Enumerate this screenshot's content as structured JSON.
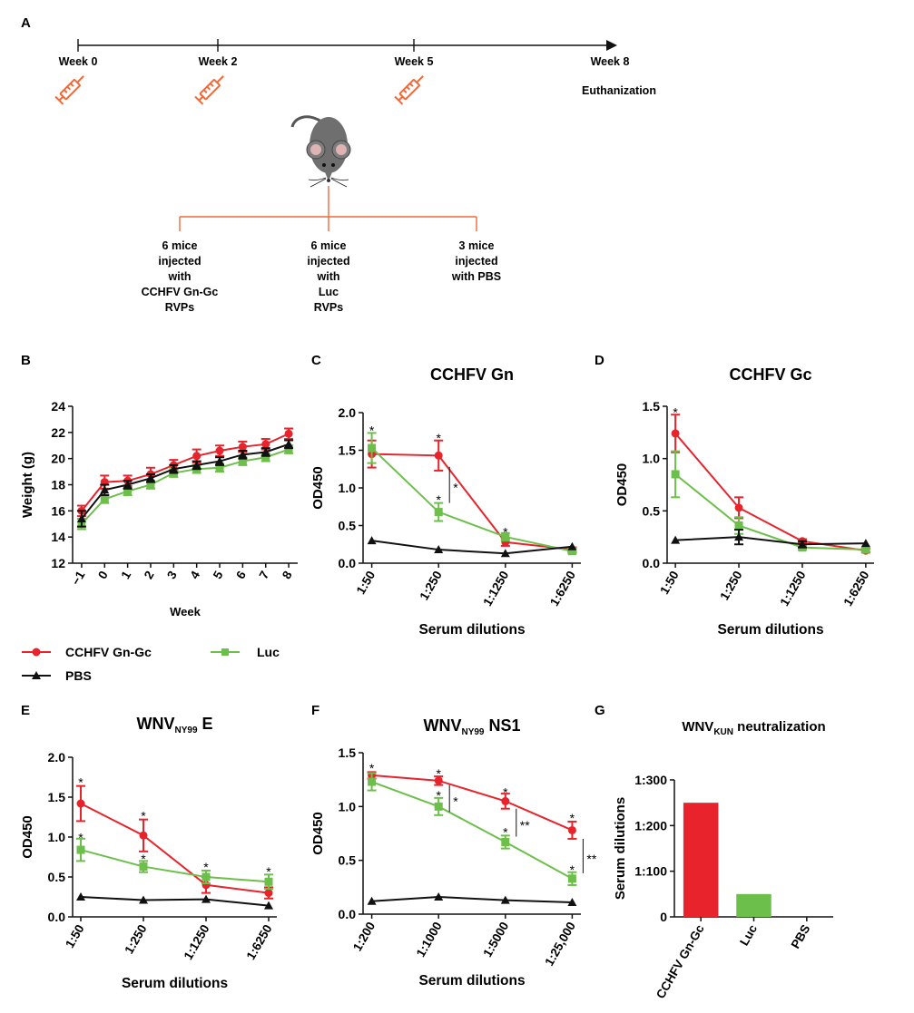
{
  "colors": {
    "red": "#e8232b",
    "green": "#6dbf4b",
    "black": "#111111",
    "orange": "#ef6a3a"
  },
  "panel_letters": [
    "A",
    "B",
    "C",
    "D",
    "E",
    "F",
    "G"
  ],
  "timeline": {
    "weeks": [
      {
        "label": "Week 0",
        "week": 0,
        "injection": true
      },
      {
        "label": "Week 2",
        "week": 2,
        "injection": true
      },
      {
        "label": "Week 5",
        "week": 5,
        "injection": true
      },
      {
        "label": "Week 8",
        "week": 8,
        "injection": false
      }
    ],
    "end_note": "Euthanization",
    "icons": {
      "syringe": "syringe-icon",
      "mouse": "mouse-icon"
    },
    "groups": [
      {
        "lines": [
          "6 mice",
          "injected",
          "with",
          "CCHFV Gn-Gc",
          "RVPs"
        ]
      },
      {
        "lines": [
          "6 mice",
          "injected",
          "with",
          "Luc",
          "RVPs"
        ]
      },
      {
        "lines": [
          "3 mice",
          "injected",
          "with PBS"
        ]
      }
    ]
  },
  "legend": {
    "entries": [
      {
        "label": "CCHFV Gn-Gc",
        "color": "#e8232b",
        "marker": "circle"
      },
      {
        "label": "Luc",
        "color": "#6dbf4b",
        "marker": "square"
      },
      {
        "label": "PBS",
        "color": "#111111",
        "marker": "triangle"
      }
    ]
  },
  "chart_data": [
    {
      "id": "B",
      "type": "line",
      "title": "",
      "xlabel": "Week",
      "ylabel": "Weight (g)",
      "categories": [
        "−1",
        "0",
        "1",
        "2",
        "3",
        "4",
        "5",
        "6",
        "7",
        "8"
      ],
      "ylim": [
        12,
        24
      ],
      "yticks": [
        12,
        14,
        16,
        18,
        20,
        22,
        24
      ],
      "series": [
        {
          "name": "CCHFV Gn-Gc",
          "color": "#e8232b",
          "marker": "circle",
          "values": [
            16.0,
            18.2,
            18.3,
            18.8,
            19.5,
            20.2,
            20.6,
            20.9,
            21.1,
            21.9
          ],
          "errors": [
            0.4,
            0.5,
            0.4,
            0.5,
            0.4,
            0.5,
            0.4,
            0.4,
            0.4,
            0.4
          ]
        },
        {
          "name": "Luc",
          "color": "#6dbf4b",
          "marker": "square",
          "values": [
            15.0,
            16.9,
            17.5,
            18.0,
            18.9,
            19.2,
            19.3,
            19.8,
            20.1,
            20.7
          ],
          "errors": [
            0.4,
            0.3,
            0.3,
            0.3,
            0.3,
            0.3,
            0.3,
            0.3,
            0.3,
            0.3
          ]
        },
        {
          "name": "PBS",
          "color": "#111111",
          "marker": "triangle",
          "values": [
            15.4,
            17.6,
            18.0,
            18.5,
            19.2,
            19.5,
            19.8,
            20.3,
            20.5,
            21.1
          ],
          "errors": [
            0.6,
            0.4,
            0.3,
            0.3,
            0.3,
            0.3,
            0.3,
            0.3,
            0.3,
            0.3
          ]
        }
      ],
      "annotations": []
    },
    {
      "id": "C",
      "type": "line",
      "title": "CCHFV  Gn",
      "xlabel": "Serum dilutions",
      "ylabel": "OD450",
      "categories": [
        "1:50",
        "1:250",
        "1:1250",
        "1:6250"
      ],
      "ylim": [
        0,
        2.0
      ],
      "yticks": [
        0.0,
        0.5,
        1.0,
        1.5,
        2.0
      ],
      "series": [
        {
          "name": "CCHFV Gn-Gc",
          "color": "#e8232b",
          "marker": "circle",
          "values": [
            1.45,
            1.43,
            0.28,
            0.18
          ],
          "errors": [
            0.18,
            0.2,
            0.05,
            0.03
          ]
        },
        {
          "name": "Luc",
          "color": "#6dbf4b",
          "marker": "square",
          "values": [
            1.53,
            0.68,
            0.35,
            0.16
          ],
          "errors": [
            0.2,
            0.12,
            0.05,
            0.03
          ]
        },
        {
          "name": "PBS",
          "color": "#111111",
          "marker": "triangle",
          "values": [
            0.3,
            0.18,
            0.13,
            0.22
          ],
          "errors": [
            0,
            0,
            0,
            0
          ]
        }
      ],
      "annotations": [
        {
          "text": "*",
          "cat": 0,
          "y": 1.8
        },
        {
          "text": "*",
          "cat": 1,
          "y": 1.7
        },
        {
          "text": "*",
          "cat": 1,
          "y": 0.88
        },
        {
          "text": "*",
          "cat": 2,
          "y": 0.45
        }
      ],
      "brackets": [
        {
          "cat": 1,
          "y1": 1.28,
          "y2": 0.8,
          "text": "*"
        }
      ]
    },
    {
      "id": "D",
      "type": "line",
      "title": "CCHFV  Gc",
      "xlabel": "Serum dilutions",
      "ylabel": "OD450",
      "categories": [
        "1:50",
        "1:250",
        "1:1250",
        "1:6250"
      ],
      "ylim": [
        0,
        1.5
      ],
      "yticks": [
        0.0,
        0.5,
        1.0,
        1.5
      ],
      "series": [
        {
          "name": "CCHFV Gn-Gc",
          "color": "#e8232b",
          "marker": "circle",
          "values": [
            1.24,
            0.53,
            0.21,
            0.12
          ],
          "errors": [
            0.18,
            0.1,
            0.02,
            0.02
          ]
        },
        {
          "name": "Luc",
          "color": "#6dbf4b",
          "marker": "square",
          "values": [
            0.85,
            0.36,
            0.15,
            0.13
          ],
          "errors": [
            0.22,
            0.08,
            0.02,
            0.02
          ]
        },
        {
          "name": "PBS",
          "color": "#111111",
          "marker": "triangle",
          "values": [
            0.22,
            0.25,
            0.18,
            0.19
          ],
          "errors": [
            0,
            0.07,
            0.03,
            0
          ]
        }
      ],
      "annotations": [
        {
          "text": "*",
          "cat": 0,
          "y": 1.47
        }
      ],
      "brackets": []
    },
    {
      "id": "E",
      "type": "line",
      "title": "WNV",
      "title_sub": "NY99",
      "title_rest": " E",
      "xlabel": "Serum dilutions",
      "ylabel": "OD450",
      "categories": [
        "1:50",
        "1:250",
        "1:1250",
        "1:6250"
      ],
      "ylim": [
        0,
        2.0
      ],
      "yticks": [
        0.0,
        0.5,
        1.0,
        1.5,
        2.0
      ],
      "series": [
        {
          "name": "CCHFV Gn-Gc",
          "color": "#e8232b",
          "marker": "circle",
          "values": [
            1.42,
            1.02,
            0.4,
            0.3
          ],
          "errors": [
            0.22,
            0.2,
            0.1,
            0.07
          ]
        },
        {
          "name": "Luc",
          "color": "#6dbf4b",
          "marker": "square",
          "values": [
            0.84,
            0.63,
            0.5,
            0.44
          ],
          "errors": [
            0.14,
            0.07,
            0.08,
            0.09
          ]
        },
        {
          "name": "PBS",
          "color": "#111111",
          "marker": "triangle",
          "values": [
            0.25,
            0.21,
            0.22,
            0.14
          ],
          "errors": [
            0,
            0,
            0,
            0
          ]
        }
      ],
      "annotations": [
        {
          "text": "*",
          "cat": 0,
          "y": 1.72
        },
        {
          "text": "*",
          "cat": 0,
          "y": 1.03
        },
        {
          "text": "*",
          "cat": 1,
          "y": 1.3
        },
        {
          "text": "*",
          "cat": 1,
          "y": 0.76
        },
        {
          "text": "*",
          "cat": 2,
          "y": 0.66
        },
        {
          "text": "*",
          "cat": 3,
          "y": 0.6
        }
      ],
      "brackets": []
    },
    {
      "id": "F",
      "type": "line",
      "title": "WNV",
      "title_sub": "NY99",
      "title_rest": " NS1",
      "xlabel": "Serum dilutions",
      "ylabel": "OD450",
      "categories": [
        "1:200",
        "1:1000",
        "1:5000",
        "1:25,000"
      ],
      "ylim": [
        0,
        1.5
      ],
      "yticks": [
        0.0,
        0.5,
        1.0,
        1.5
      ],
      "series": [
        {
          "name": "CCHFV Gn-Gc",
          "color": "#e8232b",
          "marker": "circle",
          "values": [
            1.29,
            1.24,
            1.05,
            0.78
          ],
          "errors": [
            0.03,
            0.04,
            0.07,
            0.08
          ]
        },
        {
          "name": "Luc",
          "color": "#6dbf4b",
          "marker": "square",
          "values": [
            1.23,
            1.0,
            0.67,
            0.33
          ],
          "errors": [
            0.08,
            0.08,
            0.06,
            0.06
          ]
        },
        {
          "name": "PBS",
          "color": "#111111",
          "marker": "triangle",
          "values": [
            0.12,
            0.16,
            0.13,
            0.11
          ],
          "errors": [
            0,
            0,
            0,
            0
          ]
        }
      ],
      "annotations": [
        {
          "text": "*",
          "cat": 0,
          "y": 1.38
        },
        {
          "text": "*",
          "cat": 1,
          "y": 1.33
        },
        {
          "text": "*",
          "cat": 1,
          "y": 1.13
        },
        {
          "text": "*",
          "cat": 2,
          "y": 1.16
        },
        {
          "text": "*",
          "cat": 2,
          "y": 0.79
        },
        {
          "text": "*",
          "cat": 3,
          "y": 0.92
        },
        {
          "text": "*",
          "cat": 3,
          "y": 0.44
        }
      ],
      "brackets": [
        {
          "cat": 1,
          "y1": 1.2,
          "y2": 0.95,
          "text": "*"
        },
        {
          "cat": 2,
          "y1": 0.98,
          "y2": 0.72,
          "text": "**"
        },
        {
          "cat": 3,
          "y1": 0.7,
          "y2": 0.38,
          "text": "**"
        }
      ]
    },
    {
      "id": "G",
      "type": "bar",
      "title": "WNV",
      "title_sub": "KUN",
      "title_rest": " neutralization",
      "xlabel": "",
      "ylabel": "Serum  dilutions",
      "categories": [
        "CCHFV Gn-Gc",
        "Luc",
        "PBS"
      ],
      "values": [
        250,
        50,
        0
      ],
      "colors": [
        "#e8232b",
        "#6dbf4b",
        "#111111"
      ],
      "ylim": [
        0,
        300
      ],
      "yticks": [
        0,
        100,
        200,
        300
      ],
      "ytick_labels": [
        "0",
        "1:100",
        "1:200",
        "1:300"
      ]
    }
  ]
}
